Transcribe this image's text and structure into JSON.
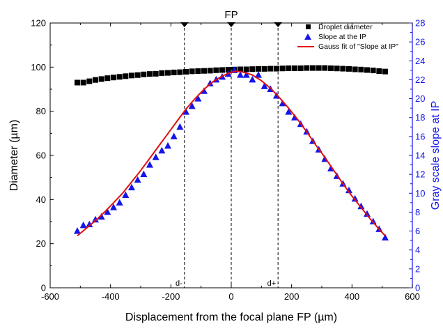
{
  "chart_data": {
    "type": "scatter",
    "xlabel": "Displacement from the focal plane FP (µm)",
    "ylabel": "Diameter (µm)",
    "y2label": "Gray scale slope at IP",
    "xlim": [
      -600,
      600
    ],
    "ylim": [
      0,
      120
    ],
    "y2lim": [
      0,
      28
    ],
    "xticks": [
      -600,
      -400,
      -200,
      0,
      200,
      400,
      600
    ],
    "yticks": [
      0,
      20,
      40,
      60,
      80,
      100,
      120
    ],
    "y2ticks": [
      0,
      2,
      4,
      6,
      8,
      10,
      12,
      14,
      16,
      18,
      20,
      22,
      24,
      26,
      28
    ],
    "grid": false,
    "legend_position": "top-right",
    "colors": {
      "droplet": "#000000",
      "slope": "#1515e8",
      "fit": "#e01010",
      "right_axis": "#1515e8"
    },
    "annotations": {
      "fp_label": "FP",
      "d_minus": "d-",
      "d_plus": "d+",
      "markers_x": [
        -155,
        0,
        155
      ]
    },
    "series": [
      {
        "name": "Droplet diameter",
        "axis": "left",
        "marker": "square",
        "x": [
          -510,
          -490,
          -470,
          -450,
          -430,
          -410,
          -390,
          -370,
          -350,
          -330,
          -310,
          -290,
          -270,
          -250,
          -230,
          -210,
          -190,
          -170,
          -150,
          -130,
          -110,
          -90,
          -70,
          -50,
          -30,
          -10,
          10,
          30,
          50,
          70,
          90,
          110,
          130,
          150,
          170,
          190,
          210,
          230,
          250,
          270,
          290,
          310,
          330,
          350,
          370,
          390,
          410,
          430,
          450,
          470,
          490,
          510
        ],
        "values": [
          93.0,
          93.0,
          93.6,
          94.2,
          94.6,
          95.0,
          95.3,
          95.6,
          95.9,
          96.2,
          96.4,
          96.7,
          96.9,
          97.0,
          97.3,
          97.4,
          97.6,
          97.7,
          97.9,
          98.1,
          98.2,
          98.3,
          98.4,
          98.6,
          98.7,
          98.8,
          98.9,
          99.0,
          99.0,
          99.1,
          99.2,
          99.2,
          99.3,
          99.3,
          99.4,
          99.5,
          99.5,
          99.5,
          99.6,
          99.6,
          99.6,
          99.6,
          99.5,
          99.4,
          99.3,
          99.2,
          99.0,
          98.9,
          98.7,
          98.5,
          98.2,
          98.0
        ]
      },
      {
        "name": "Slope at the IP",
        "axis": "right",
        "marker": "triangle",
        "x": [
          -510,
          -490,
          -470,
          -450,
          -430,
          -410,
          -390,
          -370,
          -350,
          -330,
          -310,
          -290,
          -270,
          -250,
          -230,
          -210,
          -190,
          -170,
          -150,
          -130,
          -110,
          -90,
          -70,
          -50,
          -30,
          -10,
          10,
          30,
          50,
          70,
          90,
          110,
          130,
          150,
          170,
          190,
          210,
          230,
          250,
          270,
          290,
          310,
          330,
          350,
          370,
          390,
          410,
          430,
          450,
          470,
          490,
          510
        ],
        "values": [
          6.0,
          6.6,
          6.7,
          7.2,
          7.5,
          8.0,
          8.5,
          9.0,
          9.8,
          10.6,
          11.4,
          12.0,
          13.0,
          13.8,
          14.5,
          15.0,
          16.0,
          17.0,
          18.6,
          19.2,
          20.0,
          20.8,
          21.6,
          22.0,
          22.3,
          22.6,
          23.0,
          22.5,
          22.5,
          22.0,
          22.5,
          21.3,
          21.0,
          20.3,
          19.5,
          18.6,
          18.0,
          17.3,
          16.5,
          15.5,
          14.6,
          13.6,
          12.6,
          11.8,
          11.0,
          10.3,
          9.4,
          8.6,
          7.8,
          7.0,
          6.2,
          5.3
        ]
      },
      {
        "name": "Gauss fit of \"Slope at IP\"",
        "axis": "right",
        "marker": "line",
        "x": [
          -510,
          -480,
          -450,
          -420,
          -390,
          -360,
          -330,
          -300,
          -270,
          -240,
          -210,
          -180,
          -150,
          -120,
          -90,
          -60,
          -30,
          0,
          20,
          40,
          70,
          100,
          130,
          160,
          190,
          220,
          250,
          280,
          310,
          340,
          370,
          400,
          430,
          460,
          490,
          510
        ],
        "values": [
          5.5,
          6.3,
          7.1,
          8.0,
          9.0,
          10.0,
          11.2,
          12.4,
          13.7,
          15.0,
          16.3,
          17.6,
          18.9,
          20.0,
          21.0,
          21.8,
          22.4,
          22.8,
          22.9,
          22.8,
          22.5,
          21.9,
          21.1,
          20.1,
          19.0,
          17.8,
          16.5,
          15.1,
          13.8,
          12.4,
          11.0,
          9.7,
          8.5,
          7.3,
          6.2,
          5.5
        ]
      }
    ]
  }
}
